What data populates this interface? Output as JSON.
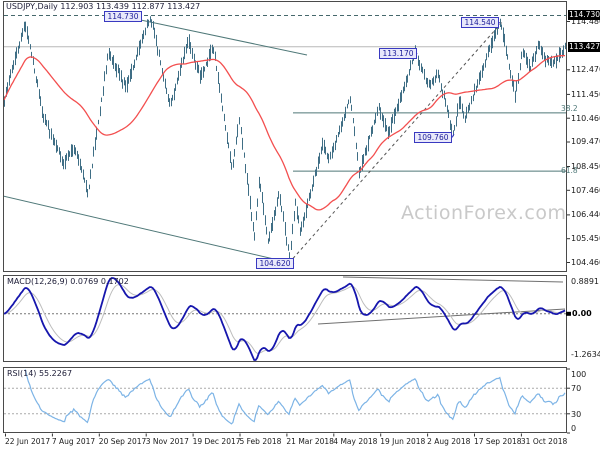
{
  "window": {
    "title": "USDJPY,Daily 112.903 113.439 112.877 113.427"
  },
  "watermark": "ActionForex.com",
  "colors": {
    "bars": "#3f6e85",
    "ma": "#f34f4f",
    "macd": "#1616ad",
    "signal": "#bdbdbd",
    "rsi": "#7db4e6",
    "trendline": "#4f7878",
    "dashed": "#555555",
    "grid_dashed": "#aaaaaa",
    "current_price_line": "#b8b8b8",
    "label_box_border": "#3939c0",
    "axis_box_bg": "#000000",
    "watermark_color": "#c9c9c9"
  },
  "x_axis": {
    "dates": [
      "22 Jun 2017",
      "7 Aug 2017",
      "20 Sep 2017",
      "3 Nov 2017",
      "19 Dec 2017",
      "5 Feb 2018",
      "21 Mar 2018",
      "4 May 2018",
      "19 Jun 2018",
      "2 Aug 2018",
      "17 Sep 2018",
      "31 Oct 2018"
    ]
  },
  "chart_data": [
    {
      "type": "bar",
      "name": "USDJPY Daily OHLC bars",
      "symbol": "USDJPY",
      "timeframe": "Daily",
      "last_bar": {
        "open": 112.903,
        "high": 113.439,
        "low": 112.877,
        "close": 113.427
      },
      "ylim": [
        104.0,
        115.0
      ],
      "y_ticks": [
        "114.480",
        "112.470",
        "111.450",
        "110.460",
        "109.470",
        "108.450",
        "107.460",
        "106.440",
        "105.450",
        "104.460"
      ],
      "current_price": 113.427,
      "resistance_dashed_level": 114.73,
      "bar_count": 371,
      "price_path_anchors": [
        [
          4,
          111.3
        ],
        [
          25,
          114.45
        ],
        [
          43,
          110.6
        ],
        [
          63,
          108.6
        ],
        [
          74,
          109.3
        ],
        [
          88,
          107.35
        ],
        [
          108,
          113.25
        ],
        [
          126,
          111.7
        ],
        [
          150,
          114.73
        ],
        [
          170,
          110.9
        ],
        [
          188,
          113.7
        ],
        [
          200,
          112.15
        ],
        [
          213,
          113.4
        ],
        [
          232,
          108.3
        ],
        [
          239,
          110.4
        ],
        [
          254,
          105.55
        ],
        [
          259,
          107.9
        ],
        [
          268,
          105.3
        ],
        [
          279,
          107.3
        ],
        [
          289,
          104.62
        ],
        [
          295,
          106.9
        ],
        [
          300,
          105.7
        ],
        [
          323,
          109.4
        ],
        [
          329,
          108.7
        ],
        [
          350,
          111.35
        ],
        [
          359,
          108.15
        ],
        [
          378,
          110.9
        ],
        [
          388,
          109.8
        ],
        [
          415,
          113.17
        ],
        [
          428,
          111.8
        ],
        [
          438,
          112.3
        ],
        [
          453,
          109.77
        ],
        [
          459,
          111.2
        ],
        [
          465,
          110.5
        ],
        [
          492,
          113.7
        ],
        [
          500,
          114.54
        ],
        [
          515,
          111.38
        ],
        [
          522,
          113.3
        ],
        [
          530,
          112.55
        ],
        [
          538,
          113.6
        ],
        [
          545,
          112.9
        ],
        [
          553,
          112.7
        ],
        [
          565,
          113.43
        ]
      ],
      "ma": {
        "period": 50
      },
      "fib_levels": [
        {
          "label": "38.2",
          "price": 110.68,
          "x_start": 293
        },
        {
          "label": "61.8",
          "price": 108.26,
          "x_start": 293
        }
      ],
      "price_labels": [
        {
          "text": "114.730",
          "box": [
            104,
            11
          ],
          "anchor": null
        },
        {
          "text": "114.540",
          "box": [
            461,
            17
          ],
          "anchor": [
            500,
            23
          ]
        },
        {
          "text": "113.170",
          "box": [
            379,
            48
          ],
          "anchor": [
            417,
            53
          ]
        },
        {
          "text": "109.760",
          "box": [
            414,
            132
          ],
          "anchor": [
            454,
            134
          ]
        },
        {
          "text": "104.620",
          "box": [
            256,
            258
          ],
          "anchor": [
            291,
            262
          ]
        }
      ],
      "axis_boxes": [
        {
          "text": "114.730",
          "price": 114.73
        },
        {
          "text": "113.427",
          "price": 113.427
        }
      ],
      "trendlines": [
        {
          "from": [
            105,
            12.5
          ],
          "to": [
            307,
            55
          ],
          "style": "solid"
        },
        {
          "from": [
            3,
            196
          ],
          "to": [
            291,
            263
          ],
          "style": "solid"
        },
        {
          "from": [
            289,
            263
          ],
          "to": [
            503,
            21
          ],
          "style": "dashed"
        }
      ]
    },
    {
      "type": "line",
      "name": "MACD",
      "title": "MACD(12,26,9) 0.0769 0.1702",
      "params": [
        12,
        26,
        9
      ],
      "current_values": {
        "macd": 0.0769,
        "signal": 0.1702
      },
      "axis_labels": {
        "max": "0.8891",
        "zero": "0.00",
        "min": "-1.2634"
      },
      "trendlines": [
        {
          "from": [
            343,
            277
          ],
          "to": [
            563,
            282
          ]
        },
        {
          "from": [
            318,
            324
          ],
          "to": [
            565,
            309
          ]
        }
      ]
    },
    {
      "type": "line",
      "name": "RSI",
      "title": "RSI(14) 55.2267",
      "period": 14,
      "current_value": 55.2267,
      "levels": [
        {
          "label": "100",
          "value": 100,
          "dashed": false
        },
        {
          "label": "70",
          "value": 70,
          "dashed": true
        },
        {
          "label": "30",
          "value": 30,
          "dashed": true
        },
        {
          "label": "0",
          "value": 0,
          "dashed": false
        }
      ]
    }
  ]
}
